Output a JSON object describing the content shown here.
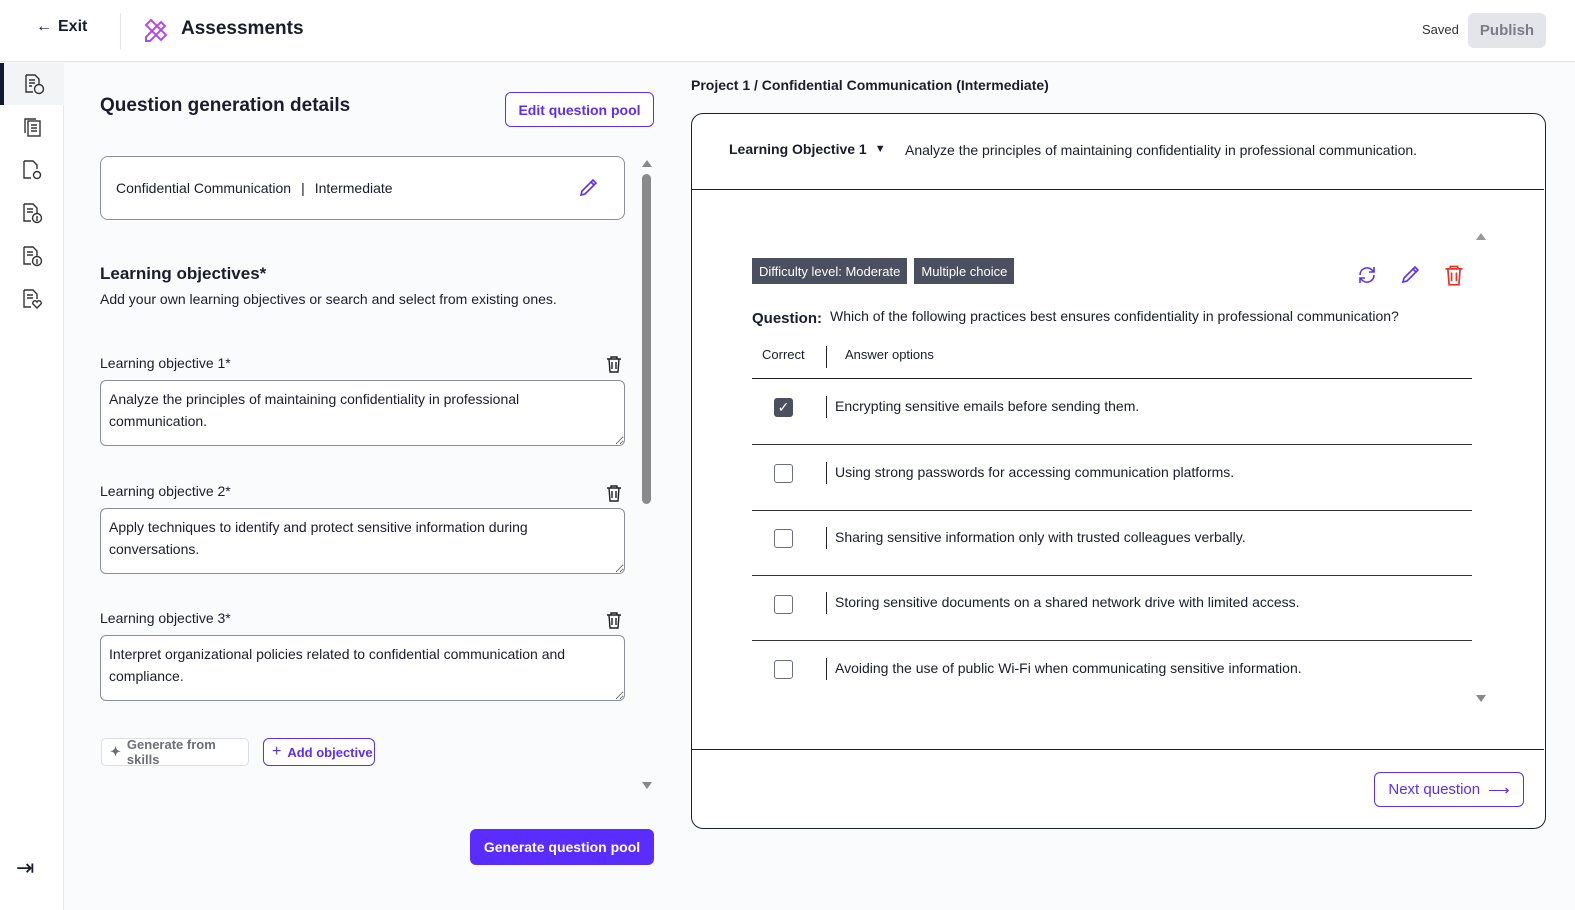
{
  "header": {
    "exit": "Exit",
    "title": "Assessments",
    "status": "Saved",
    "publish": "Publish"
  },
  "sidebar": {
    "items": [
      "question-generation-icon",
      "question-pool-icon",
      "settings-doc-icon",
      "info-doc-icon",
      "info-doc-icon-2",
      "favorite-doc-icon"
    ],
    "collapse": "collapse-sidebar-icon"
  },
  "left": {
    "title": "Question generation details",
    "edit_pool": "Edit question pool",
    "topic": "Confidential Communication",
    "sep": "|",
    "level": "Intermediate",
    "lo_title": "Learning objectives*",
    "lo_sub": "Add your own learning objectives or search and select from existing ones.",
    "objectives": [
      {
        "label": "Learning objective 1*",
        "value": "Analyze the principles of maintaining confidentiality in professional communication."
      },
      {
        "label": "Learning objective 2*",
        "value": "Apply techniques to identify and protect sensitive information during conversations."
      },
      {
        "label": "Learning objective 3*",
        "value": "Interpret organizational policies related to confidential communication and compliance."
      }
    ],
    "generate_skills": "Generate from skills",
    "add_objective": "Add objective",
    "generate_pool": "Generate question pool"
  },
  "right": {
    "breadcrumb": "Project 1 / Confidential Communication (Intermediate)",
    "objective_select": "Learning Objective 1",
    "objective_text": "Analyze the principles of maintaining confidentiality in professional communication.",
    "tags": [
      "Difficulty level: Moderate",
      "Multiple choice"
    ],
    "question_label": "Question:",
    "question": "Which of the following practices best ensures confidentiality in professional communication?",
    "col_correct": "Correct",
    "col_options": "Answer options",
    "options": [
      {
        "text": "Encrypting sensitive emails before sending them.",
        "correct": true
      },
      {
        "text": "Using strong passwords for accessing communication platforms.",
        "correct": false
      },
      {
        "text": "Sharing sensitive information only with trusted colleagues verbally.",
        "correct": false
      },
      {
        "text": "Storing sensitive documents on a shared network drive with limited access.",
        "correct": false
      },
      {
        "text": "Avoiding the use of public Wi-Fi when communicating sensitive information.",
        "correct": false
      }
    ],
    "next": "Next question"
  },
  "colors": {
    "accent": "#5b2cff",
    "danger": "#e5342c",
    "tag_bg": "#4b4f60"
  }
}
